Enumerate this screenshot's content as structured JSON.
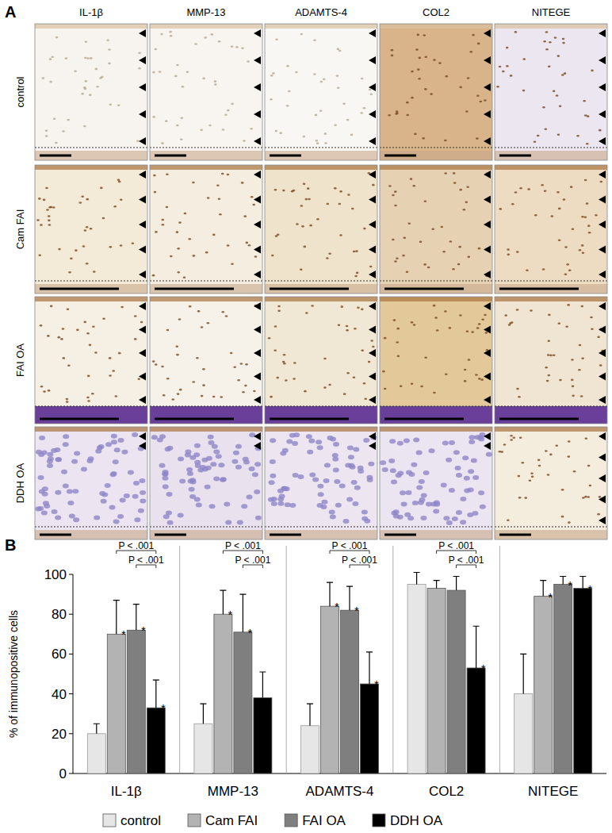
{
  "panel_a": {
    "label": "A",
    "columns": [
      "IL-1β",
      "MMP-13",
      "ADAMTS-4",
      "COL2",
      "NITEGE"
    ],
    "rows": [
      "control",
      "Cam FAI",
      "FAI OA",
      "DDH OA"
    ]
  },
  "panel_b_label": "B",
  "chart_data": {
    "type": "bar",
    "y_label": "% of immunopositive cells",
    "categories": [
      "IL-1β",
      "MMP-13",
      "ADAMTS-4",
      "COL2",
      "NITEGE"
    ],
    "series": [
      {
        "name": "control",
        "color": "#e6e6e6",
        "values": [
          20,
          25,
          24,
          95,
          40
        ],
        "errors": [
          5,
          10,
          11,
          6,
          20
        ],
        "annotations": [
          null,
          null,
          null,
          null,
          null
        ]
      },
      {
        "name": "Cam FAI",
        "color": "#b3b3b3",
        "values": [
          70,
          80,
          84,
          93,
          89
        ],
        "errors": [
          17,
          12,
          12,
          4,
          8
        ],
        "annotations": [
          "*",
          "*",
          "*",
          null,
          "*"
        ]
      },
      {
        "name": "FAI OA",
        "color": "#7f7f7f",
        "values": [
          72,
          71,
          82,
          92,
          95
        ],
        "errors": [
          13,
          19,
          12,
          7,
          4
        ],
        "annotations": [
          "*",
          "*",
          "*",
          null,
          "*"
        ]
      },
      {
        "name": "DDH OA",
        "color": "#000000",
        "values": [
          33,
          38,
          45,
          53,
          93
        ],
        "errors": [
          14,
          13,
          16,
          21,
          6
        ],
        "annotations": [
          "*",
          null,
          "*",
          "*",
          "*"
        ]
      }
    ],
    "ylim": [
      0,
      100
    ],
    "yticks": [
      0,
      20,
      40,
      60,
      80,
      100
    ],
    "grid": false,
    "legend": "bottom",
    "comparisons": [
      {
        "category": 0,
        "from": 1,
        "to": 3,
        "label": "P < .001"
      },
      {
        "category": 0,
        "from": 2,
        "to": 3,
        "label": "P < .001"
      },
      {
        "category": 1,
        "from": 1,
        "to": 3,
        "label": "P < .001"
      },
      {
        "category": 1,
        "from": 2,
        "to": 3,
        "label": "P < .001"
      },
      {
        "category": 2,
        "from": 1,
        "to": 3,
        "label": "P < .001"
      },
      {
        "category": 2,
        "from": 2,
        "to": 3,
        "label": "P < .001"
      },
      {
        "category": 3,
        "from": 1,
        "to": 3,
        "label": "P < .001"
      },
      {
        "category": 3,
        "from": 2,
        "to": 3,
        "label": "P < .001"
      }
    ]
  }
}
